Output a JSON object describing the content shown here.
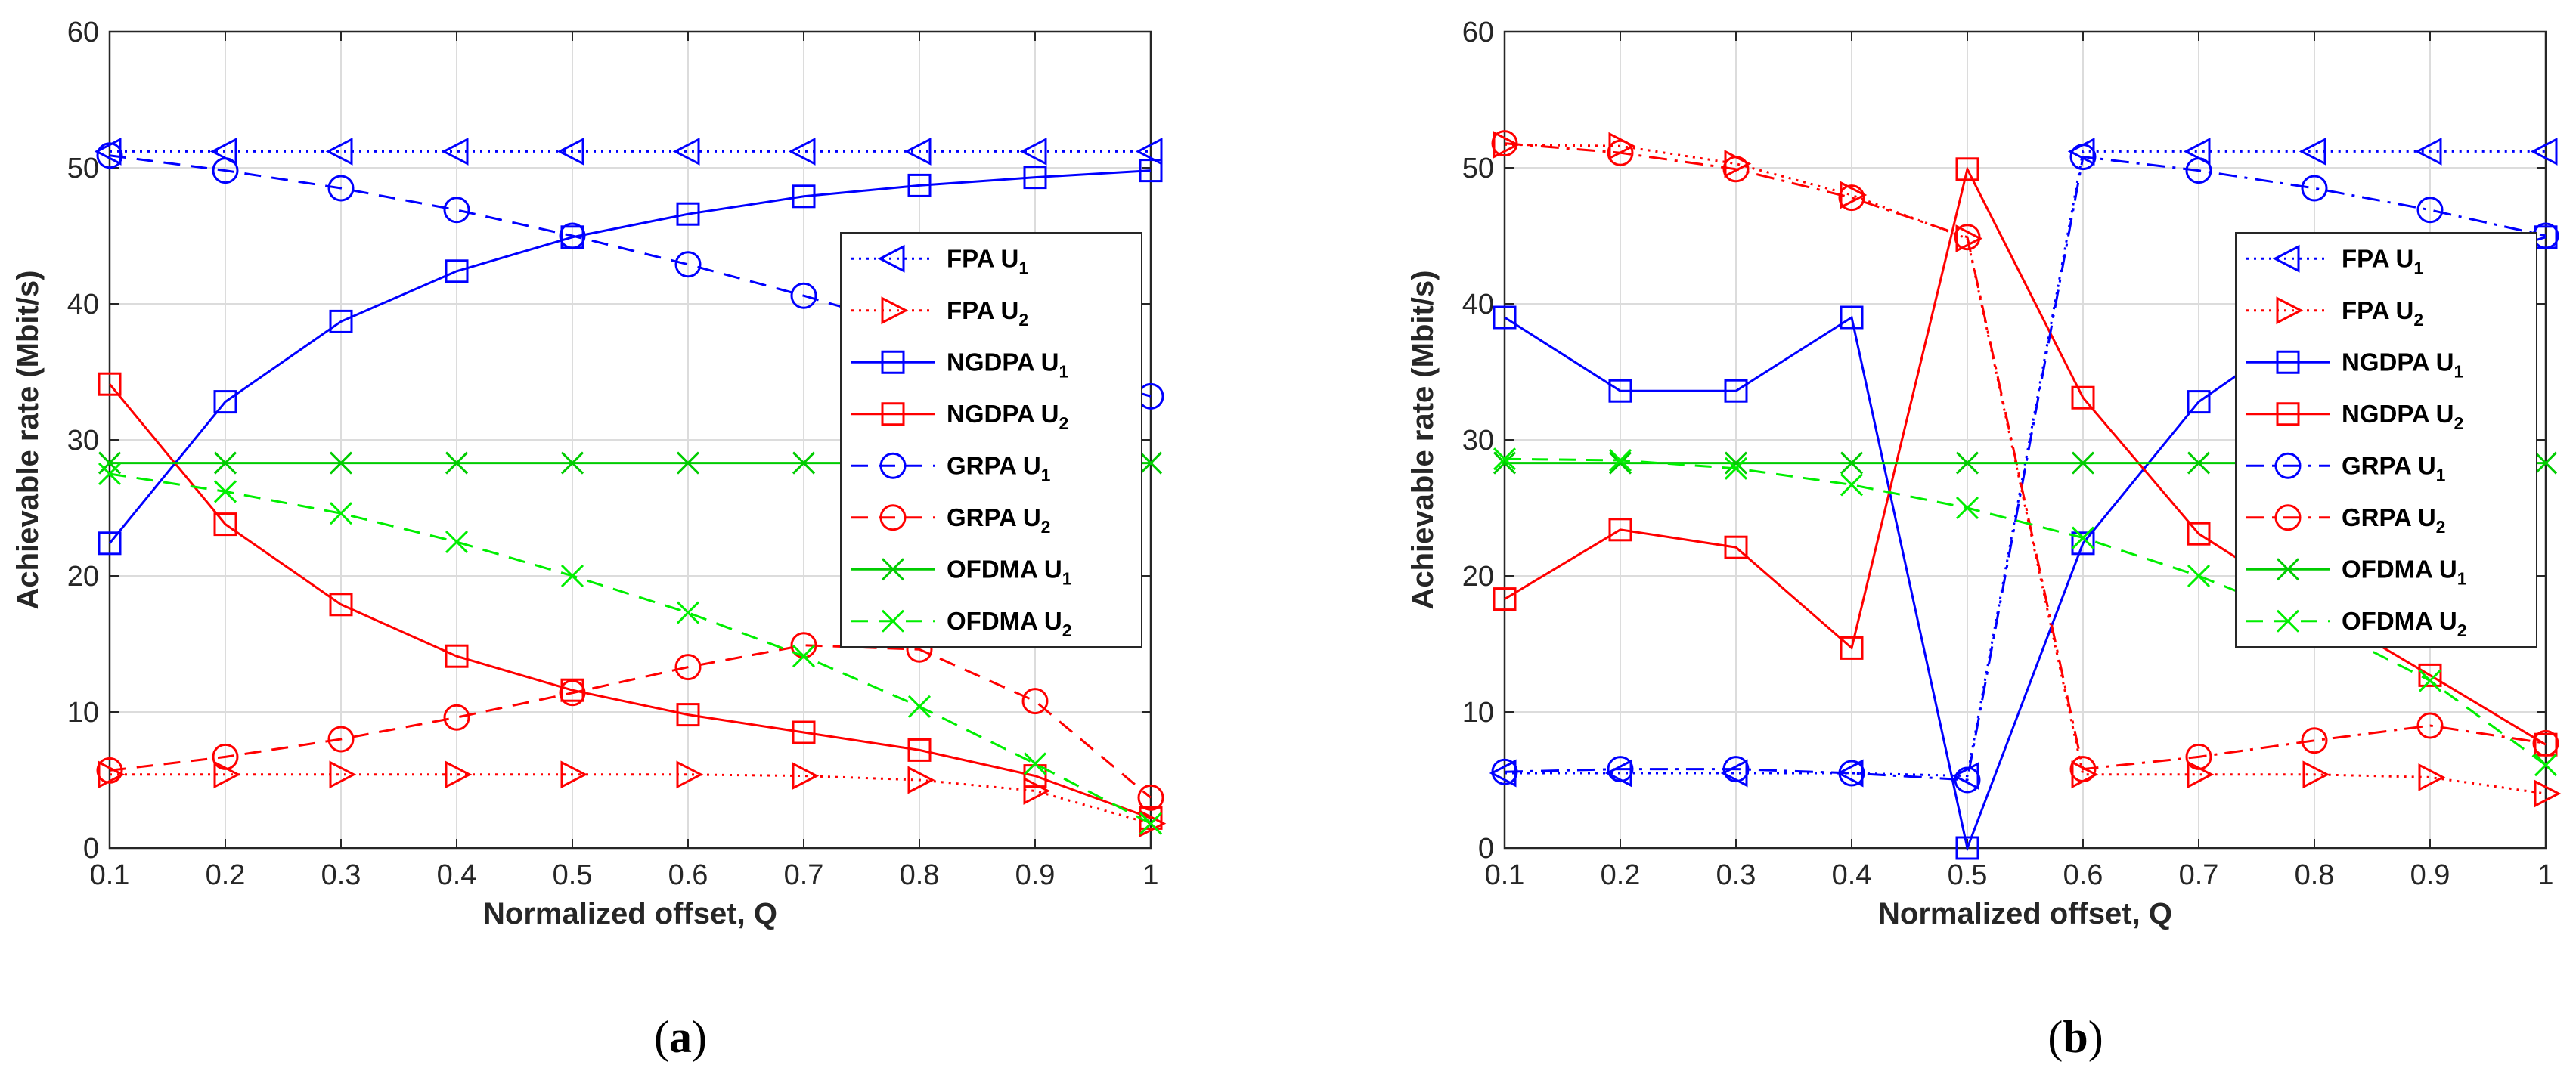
{
  "chart_data": [
    {
      "type": "line",
      "panel_label": "a",
      "xlabel": "Normalized offset, Q",
      "ylabel": "Achievable rate (Mbit/s)",
      "xlim": [
        0.1,
        1
      ],
      "ylim": [
        0,
        60
      ],
      "xticks": [
        "0.1",
        "0.2",
        "0.3",
        "0.4",
        "0.5",
        "0.6",
        "0.7",
        "0.8",
        "0.9",
        "1"
      ],
      "yticks": [
        "0",
        "10",
        "20",
        "30",
        "40",
        "50",
        "60"
      ],
      "grid": true,
      "legend_position": "center-right",
      "x": [
        0.1,
        0.2,
        0.3,
        0.4,
        0.5,
        0.6,
        0.7,
        0.8,
        0.9,
        1.0
      ],
      "series": [
        {
          "name": "FPA U",
          "subscript": "1",
          "color": "#0000ff",
          "dash": "dotted",
          "marker": "triangle-left",
          "values": [
            51.2,
            51.2,
            51.2,
            51.2,
            51.2,
            51.2,
            51.2,
            51.2,
            51.2,
            51.2
          ]
        },
        {
          "name": "FPA U",
          "subscript": "2",
          "color": "#ff0000",
          "dash": "dotted",
          "marker": "triangle-right",
          "values": [
            5.4,
            5.4,
            5.4,
            5.4,
            5.4,
            5.4,
            5.3,
            5.0,
            4.2,
            1.8
          ]
        },
        {
          "name": "NGDPA U",
          "subscript": "1",
          "color": "#0000ff",
          "dash": "solid",
          "marker": "square",
          "values": [
            22.4,
            32.8,
            38.7,
            42.4,
            44.9,
            46.6,
            47.9,
            48.7,
            49.3,
            49.8
          ]
        },
        {
          "name": "NGDPA U",
          "subscript": "2",
          "color": "#ff0000",
          "dash": "solid",
          "marker": "square",
          "values": [
            34.1,
            23.8,
            17.9,
            14.1,
            11.6,
            9.8,
            8.5,
            7.2,
            5.3,
            2.2
          ]
        },
        {
          "name": "GRPA U",
          "subscript": "1",
          "color": "#0000ff",
          "dash": "dashed",
          "marker": "circle",
          "values": [
            50.9,
            49.8,
            48.5,
            46.9,
            45.0,
            42.9,
            40.6,
            38.1,
            35.8,
            33.2
          ]
        },
        {
          "name": "GRPA U",
          "subscript": "2",
          "color": "#ff0000",
          "dash": "dashed",
          "marker": "circle",
          "values": [
            5.7,
            6.7,
            8.0,
            9.6,
            11.4,
            13.3,
            14.9,
            14.6,
            10.8,
            3.7
          ]
        },
        {
          "name": "OFDMA U",
          "subscript": "1",
          "color": "#00cc00",
          "dash": "solid",
          "marker": "x",
          "values": [
            28.3,
            28.3,
            28.3,
            28.3,
            28.3,
            28.3,
            28.3,
            28.3,
            28.3,
            28.3
          ]
        },
        {
          "name": "OFDMA U",
          "subscript": "2",
          "color": "#00ee00",
          "dash": "dashed",
          "marker": "x",
          "values": [
            27.5,
            26.2,
            24.6,
            22.5,
            20.0,
            17.3,
            14.1,
            10.4,
            6.2,
            1.8
          ]
        }
      ]
    },
    {
      "type": "line",
      "panel_label": "b",
      "xlabel": "Normalized offset, Q",
      "ylabel": "Achievable rate (Mbit/s)",
      "xlim": [
        0.1,
        1
      ],
      "ylim": [
        0,
        60
      ],
      "xticks": [
        "0.1",
        "0.2",
        "0.3",
        "0.4",
        "0.5",
        "0.6",
        "0.7",
        "0.8",
        "0.9",
        "1"
      ],
      "yticks": [
        "0",
        "10",
        "20",
        "30",
        "40",
        "50",
        "60"
      ],
      "grid": true,
      "legend_position": "center-right",
      "x": [
        0.1,
        0.2,
        0.3,
        0.4,
        0.5,
        0.6,
        0.7,
        0.8,
        0.9,
        1.0
      ],
      "series": [
        {
          "name": "FPA U",
          "subscript": "1",
          "color": "#0000ff",
          "dash": "dotted",
          "marker": "triangle-left",
          "values": [
            5.5,
            5.5,
            5.5,
            5.5,
            5.3,
            51.2,
            51.2,
            51.2,
            51.2,
            51.2
          ]
        },
        {
          "name": "FPA U",
          "subscript": "2",
          "color": "#ff0000",
          "dash": "dotted",
          "marker": "triangle-right",
          "values": [
            51.7,
            51.6,
            50.3,
            48.0,
            44.8,
            5.4,
            5.4,
            5.4,
            5.2,
            4.0
          ]
        },
        {
          "name": "NGDPA U",
          "subscript": "1",
          "color": "#0000ff",
          "dash": "solid",
          "marker": "square",
          "values": [
            39.0,
            33.6,
            33.6,
            39.0,
            0.0,
            22.4,
            32.8,
            38.7,
            42.4,
            44.9
          ]
        },
        {
          "name": "NGDPA U",
          "subscript": "2",
          "color": "#ff0000",
          "dash": "solid",
          "marker": "square",
          "values": [
            18.3,
            23.4,
            22.1,
            14.7,
            49.9,
            33.1,
            23.1,
            17.7,
            12.7,
            7.6
          ]
        },
        {
          "name": "GRPA U",
          "subscript": "1",
          "color": "#0000ff",
          "dash": "dashdot",
          "marker": "circle",
          "values": [
            5.6,
            5.8,
            5.8,
            5.5,
            5.0,
            50.8,
            49.8,
            48.5,
            46.9,
            45.0
          ]
        },
        {
          "name": "GRPA U",
          "subscript": "2",
          "color": "#ff0000",
          "dash": "dashdot",
          "marker": "circle",
          "values": [
            51.8,
            51.1,
            49.9,
            47.8,
            44.9,
            5.8,
            6.7,
            7.9,
            9.0,
            7.7
          ]
        },
        {
          "name": "OFDMA U",
          "subscript": "1",
          "color": "#00cc00",
          "dash": "solid",
          "marker": "x",
          "values": [
            28.3,
            28.3,
            28.3,
            28.3,
            28.3,
            28.3,
            28.3,
            28.3,
            28.3,
            28.3
          ]
        },
        {
          "name": "OFDMA U",
          "subscript": "2",
          "color": "#00ee00",
          "dash": "dashed",
          "marker": "x",
          "values": [
            28.6,
            28.5,
            27.9,
            26.7,
            25.0,
            22.8,
            20.0,
            16.6,
            12.3,
            6.1
          ]
        }
      ]
    }
  ]
}
